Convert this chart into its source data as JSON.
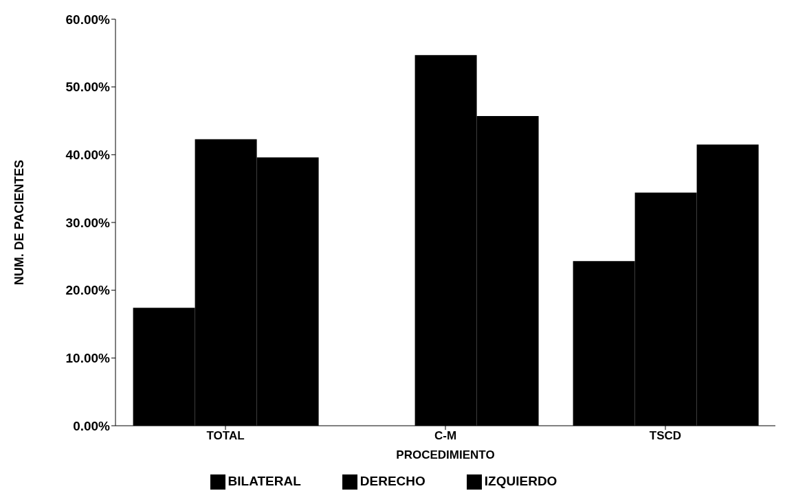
{
  "chart_data": {
    "type": "bar",
    "xlabel": "PROCEDIMIENTO",
    "ylabel": "NUM. DE PACIENTES",
    "categories": [
      "TOTAL",
      "C-M",
      "TSCD"
    ],
    "series": [
      {
        "name": "BILATERAL",
        "color": "#000000",
        "values": [
          17.4,
          0,
          24.3
        ]
      },
      {
        "name": "DERECHO",
        "color": "#000000",
        "values": [
          42.3,
          54.7,
          34.4
        ]
      },
      {
        "name": "IZQUIERDO",
        "color": "#000000",
        "values": [
          39.6,
          45.7,
          41.5
        ]
      }
    ],
    "ylim": [
      0,
      60
    ],
    "yticks": [
      {
        "value": 0,
        "label": "0.00%"
      },
      {
        "value": 10,
        "label": "10.00%"
      },
      {
        "value": 20,
        "label": "20.00%"
      },
      {
        "value": 30,
        "label": "30.00%"
      },
      {
        "value": 40,
        "label": "40.00%"
      },
      {
        "value": 50,
        "label": "50.00%"
      },
      {
        "value": 60,
        "label": "60.00%"
      }
    ],
    "grid": false,
    "legend": "bottom"
  }
}
